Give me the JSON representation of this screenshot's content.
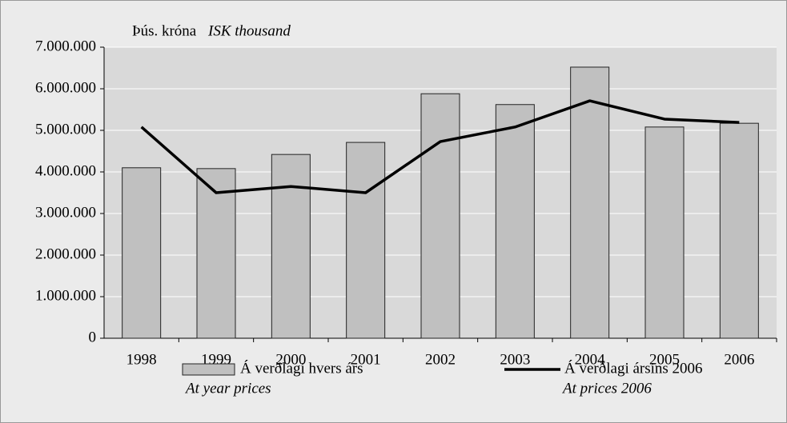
{
  "chart_data": {
    "type": "bar-line",
    "unit_label": "Þús. króna",
    "unit_label_en": "ISK thousand",
    "categories": [
      "1998",
      "1999",
      "2000",
      "2001",
      "2002",
      "2003",
      "2004",
      "2005",
      "2006"
    ],
    "series": [
      {
        "name": "Á verðlagi hvers árs",
        "name_en": "At year prices",
        "type": "bar",
        "color": "#c0c0c0",
        "values": [
          4100000,
          4080000,
          4420000,
          4710000,
          5880000,
          5620000,
          6520000,
          5080000,
          5170000
        ]
      },
      {
        "name": "Á verðlagi ársins 2006",
        "name_en": "At prices 2006",
        "type": "line",
        "color": "#000000",
        "values": [
          5080000,
          3500000,
          3650000,
          3500000,
          4730000,
          5080000,
          5710000,
          5270000,
          5190000
        ]
      }
    ],
    "ylim": [
      0,
      7000000
    ],
    "yticks": [
      0,
      {
        "value": 1000000,
        "label": "1.000.000"
      },
      {
        "value": 2000000,
        "label": "2.000.000"
      },
      {
        "value": 3000000,
        "label": "3.000.000"
      },
      {
        "value": 4000000,
        "label": "4.000.000"
      },
      {
        "value": 5000000,
        "label": "5.000.000"
      },
      {
        "value": 6000000,
        "label": "6.000.000"
      },
      {
        "value": 7000000,
        "label": "7.000.000"
      }
    ],
    "grid": true
  }
}
